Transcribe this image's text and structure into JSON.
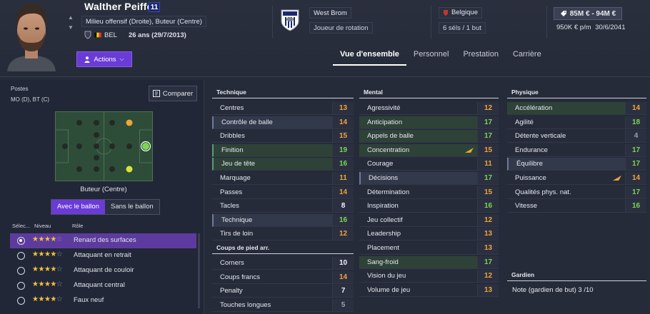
{
  "player": {
    "name": "Walther Peiffer",
    "number": "11",
    "positions": "Milieu offensif (Droite), Buteur (Centre)",
    "nationality": "BEL",
    "age_line": "26 ans (29/7/2013)",
    "actions_label": "Actions"
  },
  "club": {
    "name": "West Brom",
    "role": "Joueur de rotation"
  },
  "international": {
    "nation": "Belgique",
    "caps": "6 séls / 1 but"
  },
  "contract": {
    "value": "85M € - 94M €",
    "wage": "950K € p/m",
    "expiry": "30/6/2041"
  },
  "tabs": [
    {
      "label": "Vue d'ensemble",
      "active": true
    },
    {
      "label": "Personnel",
      "active": false
    },
    {
      "label": "Prestation",
      "active": false
    },
    {
      "label": "Carrière",
      "active": false
    }
  ],
  "positions_panel": {
    "title": "Postes",
    "value": "MO (D), BT (C)",
    "compare_label": "Comparer",
    "selected_role": "Buteur (Centre)",
    "toggle": [
      "Avec le ballon",
      "Sans le ballon"
    ],
    "headers": {
      "select": "Sélec...",
      "level": "Niveau",
      "role": "Rôle"
    },
    "roles": [
      {
        "name": "Renard des surfaces",
        "stars": 4,
        "selected": true
      },
      {
        "name": "Attaquant en retrait",
        "stars": 4,
        "selected": false
      },
      {
        "name": "Attaquant de couloir",
        "stars": 4,
        "selected": false
      },
      {
        "name": "Attaquant central",
        "stars": 4,
        "selected": false
      },
      {
        "name": "Faux neuf",
        "stars": 4,
        "selected": false
      }
    ]
  },
  "technique": {
    "title": "Technique",
    "attributes": [
      {
        "name": "Centres",
        "value": "13",
        "color": "orange",
        "style": ""
      },
      {
        "name": "Contrôle de balle",
        "value": "14",
        "color": "orange",
        "style": "hl"
      },
      {
        "name": "Dribbles",
        "value": "15",
        "color": "orange",
        "style": ""
      },
      {
        "name": "Finition",
        "value": "19",
        "color": "green",
        "style": "green hl"
      },
      {
        "name": "Jeu de tête",
        "value": "16",
        "color": "green",
        "style": "green hl"
      },
      {
        "name": "Marquage",
        "value": "11",
        "color": "orange",
        "style": ""
      },
      {
        "name": "Passes",
        "value": "14",
        "color": "orange",
        "style": ""
      },
      {
        "name": "Tacles",
        "value": "8",
        "color": "white",
        "style": ""
      },
      {
        "name": "Technique",
        "value": "16",
        "color": "green",
        "style": "hl"
      },
      {
        "name": "Tirs de loin",
        "value": "12",
        "color": "orange",
        "style": ""
      }
    ]
  },
  "set_pieces": {
    "title": "Coups de pied arr.",
    "attributes": [
      {
        "name": "Corners",
        "value": "10",
        "color": "white",
        "style": ""
      },
      {
        "name": "Coups francs",
        "value": "14",
        "color": "orange",
        "style": ""
      },
      {
        "name": "Penalty",
        "value": "7",
        "color": "white",
        "style": ""
      },
      {
        "name": "Touches longues",
        "value": "5",
        "color": "grey",
        "style": ""
      }
    ]
  },
  "mental": {
    "title": "Mental",
    "attributes": [
      {
        "name": "Agressivité",
        "value": "12",
        "color": "orange",
        "style": ""
      },
      {
        "name": "Anticipation",
        "value": "17",
        "color": "green",
        "style": "green"
      },
      {
        "name": "Appels de balle",
        "value": "17",
        "color": "green",
        "style": "green"
      },
      {
        "name": "Concentration",
        "value": "15",
        "color": "orange",
        "style": "green",
        "flag": true
      },
      {
        "name": "Courage",
        "value": "11",
        "color": "orange",
        "style": ""
      },
      {
        "name": "Décisions",
        "value": "17",
        "color": "green",
        "style": "hl"
      },
      {
        "name": "Détermination",
        "value": "15",
        "color": "orange",
        "style": ""
      },
      {
        "name": "Inspiration",
        "value": "16",
        "color": "green",
        "style": ""
      },
      {
        "name": "Jeu collectif",
        "value": "12",
        "color": "orange",
        "style": ""
      },
      {
        "name": "Leadership",
        "value": "13",
        "color": "orange",
        "style": ""
      },
      {
        "name": "Placement",
        "value": "13",
        "color": "orange",
        "style": ""
      },
      {
        "name": "Sang-froid",
        "value": "17",
        "color": "green",
        "style": "green"
      },
      {
        "name": "Vision du jeu",
        "value": "12",
        "color": "orange",
        "style": ""
      },
      {
        "name": "Volume de jeu",
        "value": "13",
        "color": "orange",
        "style": ""
      }
    ]
  },
  "physical": {
    "title": "Physique",
    "attributes": [
      {
        "name": "Accélération",
        "value": "14",
        "color": "orange",
        "style": "green"
      },
      {
        "name": "Agilité",
        "value": "18",
        "color": "green",
        "style": ""
      },
      {
        "name": "Détente verticale",
        "value": "4",
        "color": "grey",
        "style": ""
      },
      {
        "name": "Endurance",
        "value": "17",
        "color": "green",
        "style": ""
      },
      {
        "name": "Équilibre",
        "value": "17",
        "color": "green",
        "style": "hl"
      },
      {
        "name": "Puissance",
        "value": "14",
        "color": "orange",
        "style": "",
        "flag": true
      },
      {
        "name": "Qualités phys. nat.",
        "value": "17",
        "color": "green",
        "style": ""
      },
      {
        "name": "Vitesse",
        "value": "16",
        "color": "green",
        "style": ""
      }
    ]
  },
  "goalkeeper": {
    "title": "Gardien",
    "note": "Note (gardien de but) 3 /10"
  },
  "colors": {
    "accent": "#6a3bd6",
    "value_green": "#7bd653",
    "value_orange": "#f0a43a"
  }
}
